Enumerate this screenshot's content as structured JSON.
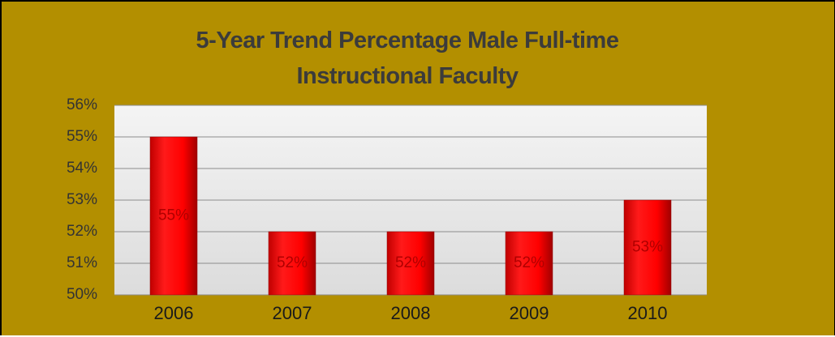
{
  "chart_data": {
    "type": "bar",
    "title": "5-Year Trend Percentage Male Full-time Instructional Faculty",
    "categories": [
      "2006",
      "2007",
      "2008",
      "2009",
      "2010"
    ],
    "values": [
      55,
      52,
      52,
      52,
      53
    ],
    "value_labels": [
      "55%",
      "52%",
      "52%",
      "52%",
      "53%"
    ],
    "color": "#ff0000",
    "ylim": [
      50,
      56
    ],
    "yticks": [
      {
        "value": 50,
        "label": "50%"
      },
      {
        "value": 51,
        "label": "51%"
      },
      {
        "value": 52,
        "label": "52%"
      },
      {
        "value": 53,
        "label": "53%"
      },
      {
        "value": 54,
        "label": "54%"
      },
      {
        "value": 55,
        "label": "55%"
      },
      {
        "value": 56,
        "label": "56%"
      }
    ],
    "grid": true
  }
}
